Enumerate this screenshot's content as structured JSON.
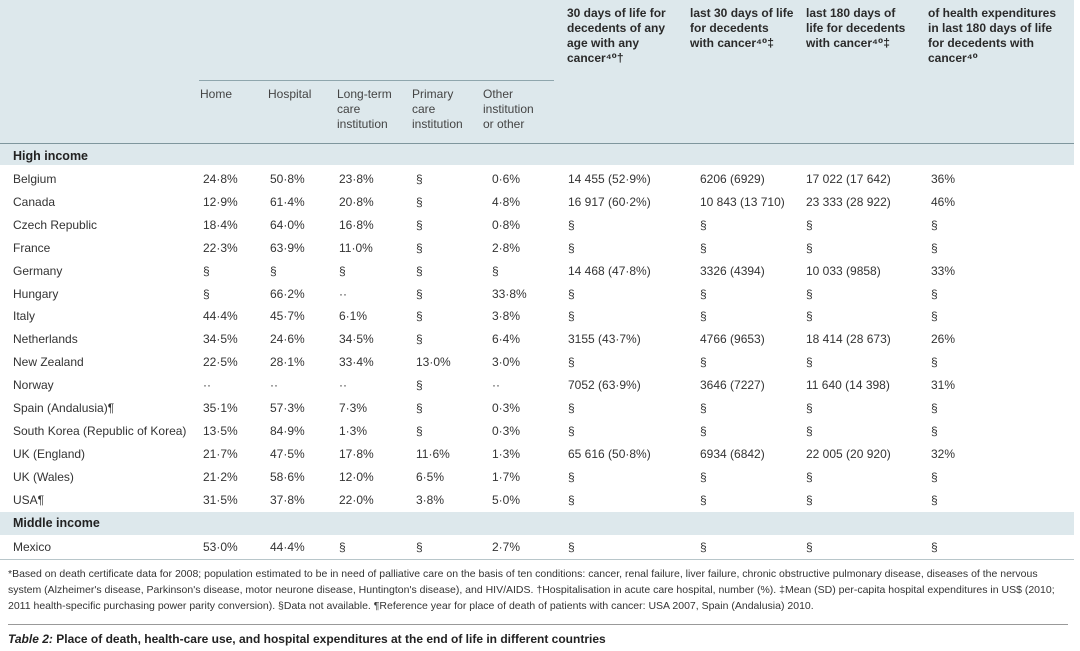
{
  "header": {
    "col_b": "30 days of life for\ndecedents of any\nage with any\ncancer⁴⁰†",
    "col_c": "last 30 days of life\nfor decedents\nwith cancer⁴⁰‡",
    "col_d": "last 180 days of\nlife for decedents\nwith cancer⁴⁰‡",
    "col_e": "of health expenditures\nin last 180 days of life\nfor decedents with\ncancer⁴⁰",
    "place": {
      "home": "Home",
      "hospital": "Hospital",
      "longterm": "Long-term\ncare\ninstitution",
      "primary": "Primary\ncare\ninstitution",
      "other": "Other\ninstitution\nor other"
    }
  },
  "sections": {
    "high": "High income",
    "middle": "Middle income"
  },
  "rows": [
    {
      "country": "Belgium",
      "home": "24·8%",
      "hospital": "50·8%",
      "ltc": "23·8%",
      "pci": "§",
      "other": "0·6%",
      "b": "14 455 (52·9%)",
      "c": "6206 (6929)",
      "d": "17 022 (17 642)",
      "e": "36%"
    },
    {
      "country": "Canada",
      "home": "12·9%",
      "hospital": "61·4%",
      "ltc": "20·8%",
      "pci": "§",
      "other": "4·8%",
      "b": "16 917 (60·2%)",
      "c": "10 843 (13 710)",
      "d": "23 333 (28 922)",
      "e": "46%"
    },
    {
      "country": "Czech Republic",
      "home": "18·4%",
      "hospital": "64·0%",
      "ltc": "16·8%",
      "pci": "§",
      "other": "0·8%",
      "b": "§",
      "c": "§",
      "d": "§",
      "e": "§"
    },
    {
      "country": "France",
      "home": "22·3%",
      "hospital": "63·9%",
      "ltc": "11·0%",
      "pci": "§",
      "other": "2·8%",
      "b": "§",
      "c": "§",
      "d": "§",
      "e": "§"
    },
    {
      "country": "Germany",
      "home": "§",
      "hospital": "§",
      "ltc": "§",
      "pci": "§",
      "other": "§",
      "b": "14 468 (47·8%)",
      "c": "3326 (4394)",
      "d": "10 033 (9858)",
      "e": "33%"
    },
    {
      "country": "Hungary",
      "home": "§",
      "hospital": "66·2%",
      "ltc": "··",
      "pci": "§",
      "other": "33·8%",
      "b": "§",
      "c": "§",
      "d": "§",
      "e": "§"
    },
    {
      "country": "Italy",
      "home": "44·4%",
      "hospital": "45·7%",
      "ltc": "6·1%",
      "pci": "§",
      "other": "3·8%",
      "b": "§",
      "c": "§",
      "d": "§",
      "e": "§"
    },
    {
      "country": "Netherlands",
      "home": "34·5%",
      "hospital": "24·6%",
      "ltc": "34·5%",
      "pci": "§",
      "other": "6·4%",
      "b": "3155 (43·7%)",
      "c": "4766 (9653)",
      "d": "18 414 (28 673)",
      "e": "26%"
    },
    {
      "country": "New Zealand",
      "home": "22·5%",
      "hospital": "28·1%",
      "ltc": "33·4%",
      "pci": "13·0%",
      "other": "3·0%",
      "b": "§",
      "c": "§",
      "d": "§",
      "e": "§"
    },
    {
      "country": "Norway",
      "home": "··",
      "hospital": "··",
      "ltc": "··",
      "pci": "§",
      "other": "··",
      "b": "7052 (63·9%)",
      "c": "3646 (7227)",
      "d": "11 640 (14 398)",
      "e": "31%"
    },
    {
      "country": "Spain (Andalusia)¶",
      "home": "35·1%",
      "hospital": "57·3%",
      "ltc": "7·3%",
      "pci": "§",
      "other": "0·3%",
      "b": "§",
      "c": "§",
      "d": "§",
      "e": "§"
    },
    {
      "country": "South Korea (Republic of Korea)",
      "home": "13·5%",
      "hospital": "84·9%",
      "ltc": "1·3%",
      "pci": "§",
      "other": "0·3%",
      "b": "§",
      "c": "§",
      "d": "§",
      "e": "§"
    },
    {
      "country": "UK (England)",
      "home": "21·7%",
      "hospital": "47·5%",
      "ltc": "17·8%",
      "pci": "11·6%",
      "other": "1·3%",
      "b": "65 616 (50·8%)",
      "c": "6934 (6842)",
      "d": "22 005 (20 920)",
      "e": "32%"
    },
    {
      "country": "UK (Wales)",
      "home": "21·2%",
      "hospital": "58·6%",
      "ltc": "12·0%",
      "pci": "6·5%",
      "other": "1·7%",
      "b": "§",
      "c": "§",
      "d": "§",
      "e": "§"
    },
    {
      "country": "USA¶",
      "home": "31·5%",
      "hospital": "37·8%",
      "ltc": "22·0%",
      "pci": "3·8%",
      "other": "5·0%",
      "b": "§",
      "c": "§",
      "d": "§",
      "e": "§"
    }
  ],
  "middle_rows": [
    {
      "country": "Mexico",
      "home": "53·0%",
      "hospital": "44·4%",
      "ltc": "§",
      "pci": "§",
      "other": "2·7%",
      "b": "§",
      "c": "§",
      "d": "§",
      "e": "§"
    }
  ],
  "footnote": "*Based on death certificate data for 2008; population estimated to be in need of palliative care on the basis of ten conditions: cancer, renal failure, liver failure, chronic obstructive pulmonary disease, diseases of the nervous system (Alzheimer's disease, Parkinson's disease, motor neurone disease, Huntington's disease), and HIV/AIDS. †Hospitalisation in acute care hospital, number (%). ‡Mean (SD) per-capita hospital expenditures in US$ (2010; 2011 health-specific purchasing power parity conversion). §Data not available. ¶Reference year for place of death of patients with cancer: USA 2007, Spain (Andalusia) 2010.",
  "caption": {
    "label": "Table 2:",
    "text": " Place of death, health-care use, and hospital expenditures at the end of life in different countries"
  }
}
